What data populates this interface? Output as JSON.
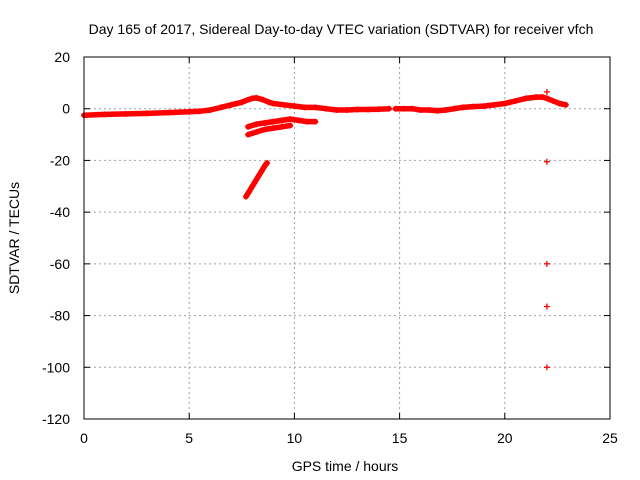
{
  "chart_data": {
    "type": "scatter",
    "title": "Day 165 of 2017, Sidereal Day-to-day VTEC variation (SDTVAR) for receiver vfch",
    "xlabel": "GPS time / hours",
    "ylabel": "SDTVAR / TECUs",
    "xlim": [
      0,
      25
    ],
    "ylim": [
      -120,
      20
    ],
    "xticks": [
      "0",
      "5",
      "10",
      "15",
      "20",
      "25"
    ],
    "yticks": [
      "20",
      "0",
      "-20",
      "-40",
      "-60",
      "-80",
      "-100",
      "-120"
    ],
    "grid": true,
    "marker": "+",
    "color": "#ff0000",
    "series": [
      {
        "segments": [
          {
            "x": [
              0.0,
              1.0,
              2.0,
              3.0,
              4.0,
              5.0,
              5.5,
              6.0,
              6.5,
              7.0,
              7.5,
              7.8,
              8.0,
              8.2,
              8.5,
              8.8,
              9.0,
              9.5,
              10.0,
              10.5,
              11.0,
              11.5,
              12.0,
              12.5,
              13.0,
              13.5,
              14.0,
              14.5
            ],
            "y": [
              -2.5,
              -2.2,
              -2.0,
              -1.8,
              -1.5,
              -1.2,
              -1.0,
              -0.5,
              0.5,
              1.5,
              2.5,
              3.5,
              4.0,
              4.2,
              3.5,
              2.5,
              2.0,
              1.5,
              1.0,
              0.5,
              0.5,
              0.0,
              -0.5,
              -0.5,
              -0.3,
              -0.3,
              -0.2,
              0.0
            ]
          },
          {
            "x": [
              14.8,
              15.2,
              15.6,
              16.0,
              16.4,
              16.8,
              17.2,
              17.6,
              18.0,
              18.5,
              19.0,
              19.5,
              20.0,
              20.5,
              21.0,
              21.5,
              21.8,
              22.0,
              22.3,
              22.6,
              22.9
            ],
            "y": [
              0.0,
              0.0,
              0.0,
              -0.5,
              -0.5,
              -0.8,
              -0.5,
              0.0,
              0.5,
              0.8,
              1.0,
              1.5,
              2.0,
              3.0,
              4.0,
              4.5,
              4.5,
              4.0,
              3.0,
              2.0,
              1.5
            ]
          },
          {
            "x": [
              7.8,
              8.2,
              8.6,
              9.0,
              9.4,
              9.8,
              10.2,
              10.6,
              11.0
            ],
            "y": [
              -7.0,
              -6.0,
              -5.5,
              -5.0,
              -4.5,
              -4.0,
              -4.5,
              -5.0,
              -5.0
            ]
          },
          {
            "x": [
              7.8,
              8.2,
              8.6,
              9.0,
              9.4,
              9.8
            ],
            "y": [
              -10.0,
              -9.0,
              -8.0,
              -7.5,
              -7.0,
              -6.5
            ]
          },
          {
            "x": [
              7.7,
              7.85,
              8.0,
              8.15,
              8.3,
              8.45,
              8.6,
              8.7
            ],
            "y": [
              -34.0,
              -32.0,
              -30.0,
              -28.0,
              -26.0,
              -24.0,
              -22.0,
              -21.0
            ]
          }
        ],
        "points": [
          {
            "x": 22.0,
            "y": 6.5
          },
          {
            "x": 22.0,
            "y": -20.5
          },
          {
            "x": 22.0,
            "y": -60.0
          },
          {
            "x": 22.0,
            "y": -76.5
          },
          {
            "x": 22.0,
            "y": -100.0
          }
        ]
      }
    ]
  }
}
